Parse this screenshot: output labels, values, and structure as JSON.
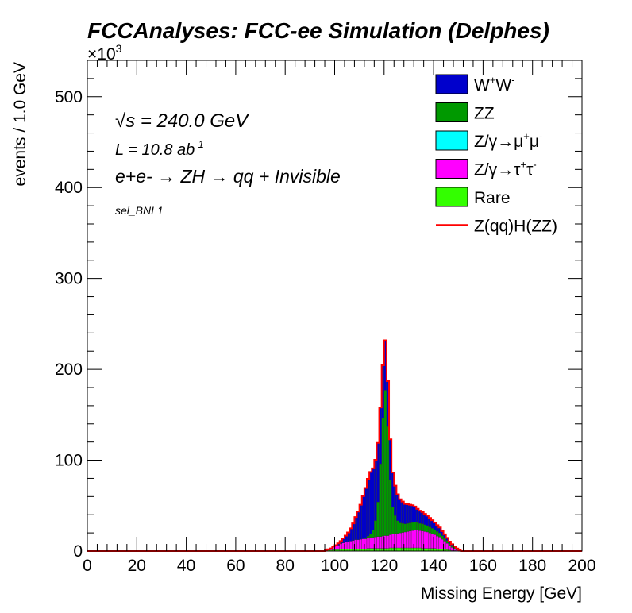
{
  "chart_data": {
    "type": "area",
    "stacked": true,
    "histogram": true,
    "title": "FCCAnalyses: FCC-ee Simulation (Delphes)",
    "xlabel": "Missing Energy [GeV]",
    "ylabel": "events / 1.0 GeV",
    "y_exponent_label": "×10",
    "y_exponent_power": "3",
    "xlim": [
      0,
      200
    ],
    "ylim": [
      0,
      540
    ],
    "x_ticks": [
      "0",
      "20",
      "40",
      "60",
      "80",
      "100",
      "120",
      "140",
      "160",
      "180",
      "200"
    ],
    "y_ticks": [
      "0",
      "100",
      "200",
      "300",
      "400",
      "500"
    ],
    "annotations": {
      "sqrt_s_symbol": "√s",
      "sqrt_s_text": " = 240.0 GeV",
      "lumi_text": "L = 10.8 ab",
      "lumi_power": "-1",
      "process_text": "e+e- → ZH → qq + Invisible",
      "selection": "sel_BNL1"
    },
    "legend_position": "top-right",
    "legend": [
      {
        "label_main": "W",
        "sup1": "+",
        "label_mid": "W",
        "sup2": "-",
        "color": "#0000cc",
        "style": "fill"
      },
      {
        "label_main": "ZZ",
        "color": "#009900",
        "style": "fill"
      },
      {
        "label_main": "Z/γ→μ",
        "sup1": "+",
        "label_mid": "μ",
        "sup2": "-",
        "color": "#00ffff",
        "style": "fill"
      },
      {
        "label_main": "Z/γ→τ",
        "sup1": "+",
        "label_mid": "τ",
        "sup2": "-",
        "color": "#ff00ff",
        "style": "fill"
      },
      {
        "label_main": "Rare",
        "color": "#33ff00",
        "style": "fill"
      },
      {
        "label_main": "Z(qq)H(ZZ)",
        "color": "#ff0000",
        "style": "line"
      }
    ],
    "bins": {
      "x_start": 96,
      "width": 1
    },
    "series": [
      {
        "name": "Rare",
        "color": "#33ff00",
        "values": [
          0.5,
          1,
          1,
          1.5,
          1.5,
          1.5,
          2,
          2,
          2,
          2,
          2,
          2,
          2.5,
          2.5,
          2.5,
          2.5,
          2.5,
          3,
          3,
          3,
          3,
          3,
          3,
          3,
          3,
          3,
          3.5,
          3.5,
          3.5,
          3.5,
          3.5,
          3.5,
          3.5,
          3.5,
          3.5,
          3.5,
          3.5,
          3.5,
          3.5,
          3,
          3,
          3,
          3,
          3,
          3,
          2.5,
          2.5,
          2,
          2,
          1.5,
          1,
          0.5,
          0.5,
          0.3,
          0.1,
          0
        ]
      },
      {
        "name": "Z/γ→τ+τ-",
        "color": "#ff00ff",
        "values": [
          0.5,
          1,
          2,
          3,
          4,
          5,
          6,
          7,
          8,
          8.5,
          9,
          9.5,
          10,
          10,
          10.5,
          11,
          11,
          11.5,
          12,
          12,
          12.5,
          13,
          13,
          13.5,
          14,
          14,
          14.5,
          15,
          15.5,
          16,
          16.5,
          17,
          17.5,
          18,
          18.5,
          19,
          19.5,
          19.5,
          19,
          19,
          18.5,
          18,
          17,
          16,
          15,
          14,
          13,
          11,
          9,
          7,
          5,
          3.5,
          2,
          1,
          0.3,
          0
        ]
      },
      {
        "name": "Z/γ→μ+μ-",
        "color": "#00ffff",
        "values": [
          0,
          0,
          0,
          0,
          0,
          0,
          0,
          0,
          0,
          0,
          0,
          0,
          0,
          0,
          0,
          0,
          0,
          0,
          0,
          0,
          0,
          0,
          0,
          0,
          0,
          0,
          0,
          0,
          0,
          0,
          0,
          0,
          0,
          0,
          0,
          0,
          0,
          0,
          0,
          0,
          0,
          0,
          0,
          0,
          0,
          0,
          0,
          0,
          0,
          0,
          0,
          0,
          0,
          0,
          0,
          0
        ]
      },
      {
        "name": "ZZ",
        "color": "#009900",
        "values": [
          0,
          0,
          0,
          0,
          0,
          0,
          0,
          0,
          0,
          0,
          0,
          0,
          0,
          0,
          0,
          0,
          1,
          2,
          4,
          8,
          18,
          38,
          80,
          130,
          160,
          120,
          60,
          30,
          20,
          14,
          11,
          10,
          9,
          9,
          9,
          9,
          9,
          8.5,
          8,
          8,
          7.5,
          7,
          6.5,
          6,
          5.5,
          5,
          4.5,
          4,
          3.5,
          3,
          2.5,
          2,
          1.5,
          1,
          0.5,
          0
        ]
      },
      {
        "name": "W+W-",
        "color": "#0000cc",
        "values": [
          0,
          0,
          0,
          0.5,
          1,
          2,
          3,
          5,
          7,
          10,
          14,
          19,
          25,
          31,
          38,
          47,
          55,
          63,
          68,
          68,
          67,
          65,
          62,
          58,
          55,
          50,
          45,
          38,
          33,
          29,
          26,
          24,
          22,
          21,
          20,
          19,
          17,
          15,
          14,
          13,
          12,
          11,
          10,
          9,
          8,
          7,
          6,
          5,
          4,
          3,
          2,
          1.5,
          1,
          0.5,
          0.2,
          0
        ]
      },
      {
        "name": "Z(qq)H(ZZ)",
        "color": "#ff0000",
        "style": "line",
        "values": [
          0,
          0,
          0,
          0,
          0,
          0,
          0,
          0,
          0,
          0,
          0,
          0,
          0,
          0,
          0,
          0,
          0,
          0,
          0,
          0,
          0,
          0,
          0,
          0,
          0,
          0,
          0,
          0,
          0,
          0,
          0,
          0,
          0,
          0,
          0,
          0,
          0,
          0,
          0,
          0,
          0,
          0,
          0,
          0,
          0,
          0,
          0,
          0,
          0,
          0,
          0,
          0,
          0,
          0,
          0,
          0
        ]
      }
    ]
  }
}
